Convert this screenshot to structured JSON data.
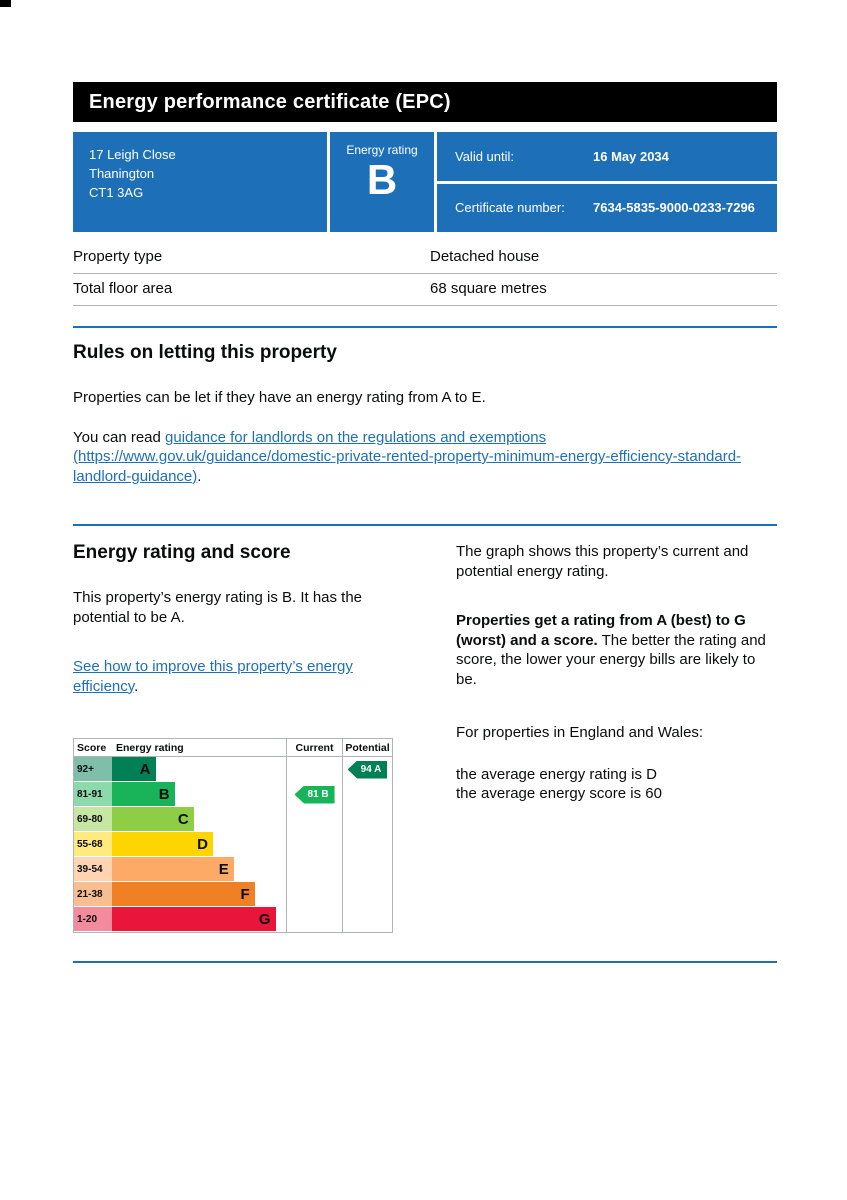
{
  "page": {
    "title": "Energy performance certificate (EPC)"
  },
  "summary": {
    "address_lines": [
      "17 Leigh Close",
      "Thanington",
      "CT1 3AG"
    ],
    "energy_rating_label": "Energy rating",
    "energy_rating_value": "B",
    "valid_until_label": "Valid until:",
    "valid_until_value": "16 May 2034",
    "certificate_number_label": "Certificate number:",
    "certificate_number_value": "7634-5835-9000-0233-7296"
  },
  "property_table": {
    "rows": [
      {
        "label": "Property type",
        "value": "Detached house"
      },
      {
        "label": "Total floor area",
        "value": "68 square metres"
      }
    ]
  },
  "rules_section": {
    "heading": "Rules on letting this property",
    "paragraph": "Properties can be let if they have an energy rating from A to E.",
    "guidance_prefix": "You can read ",
    "guidance_link": "guidance for landlords on the regulations and exemptions (https://www.gov.uk/guidance/domestic-private-rented-property-minimum-energy-efficiency-standard-landlord-guidance)",
    "guidance_suffix": "."
  },
  "rating_section": {
    "heading": "Energy rating and score",
    "paragraph": "This property’s energy rating is B. It has the potential to be A.",
    "improve_link": "See how to improve this property’s energy efficiency",
    "improve_suffix": "."
  },
  "chart": {
    "type": "epc-rating-bars",
    "headers": {
      "score": "Score",
      "rating": "Energy rating",
      "current": "Current",
      "potential": "Potential"
    },
    "bands": [
      {
        "score": "92+",
        "letter": "A",
        "color": "#008054",
        "score_bg": "#7fbfa9",
        "width_pct": 25
      },
      {
        "score": "81-91",
        "letter": "B",
        "color": "#19b459",
        "score_bg": "#8cd9ac",
        "width_pct": 36
      },
      {
        "score": "69-80",
        "letter": "C",
        "color": "#8dce46",
        "score_bg": "#c6e6a2",
        "width_pct": 47
      },
      {
        "score": "55-68",
        "letter": "D",
        "color": "#ffd500",
        "score_bg": "#ffea7f",
        "width_pct": 58
      },
      {
        "score": "39-54",
        "letter": "E",
        "color": "#fcaa65",
        "score_bg": "#fed4b2",
        "width_pct": 70
      },
      {
        "score": "21-38",
        "letter": "F",
        "color": "#ef8023",
        "score_bg": "#f7bf91",
        "width_pct": 82
      },
      {
        "score": "1-20",
        "letter": "G",
        "color": "#e9153b",
        "score_bg": "#f48a9d",
        "width_pct": 94
      }
    ],
    "current": {
      "label": "81 B",
      "score": 81,
      "rating": "B",
      "band_index": 1,
      "color": "#19b459"
    },
    "potential": {
      "label": "94 A",
      "score": 94,
      "rating": "A",
      "band_index": 0,
      "color": "#008054"
    }
  },
  "explanation": {
    "paragraph1": "The graph shows this property’s current and potential energy rating.",
    "paragraph2_bold": "Properties get a rating from A (best) to G (worst) and a score.",
    "paragraph2_rest": " The better the rating and score, the lower your energy bills are likely to be.",
    "paragraph3": "For properties in England and Wales:",
    "average_rating_line": "the average energy rating is D",
    "average_score_line": "the average energy score is 60"
  },
  "colors": {
    "govuk_blue": "#1d70b8",
    "header_black": "#000000",
    "border_gray": "#b1b4b6",
    "link_blue": "#1d70b8"
  }
}
